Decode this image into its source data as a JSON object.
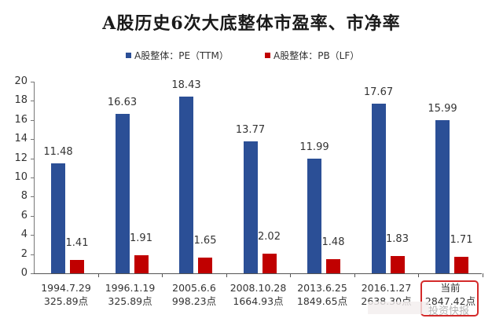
{
  "title": "A股历史6次大底整体市盈率、市净率",
  "legend": [
    {
      "label": "A股整体：PE（TTM）",
      "color": "#2b4f96"
    },
    {
      "label": "A股整体：PB（LF）",
      "color": "#c00000"
    }
  ],
  "watermark": "投资快报",
  "chart_data": {
    "type": "bar",
    "title": "A股历史6次大底整体市盈率、市净率",
    "xlabel": "",
    "ylabel": "",
    "ylim": [
      0,
      20
    ],
    "yticks": [
      0,
      2,
      4,
      6,
      8,
      10,
      12,
      14,
      16,
      18,
      20
    ],
    "grid": false,
    "legend_position": "top",
    "categories": [
      {
        "date": "1994.7.29",
        "index": "325.89点"
      },
      {
        "date": "1996.1.19",
        "index": "325.89点"
      },
      {
        "date": "2005.6.6",
        "index": "998.23点"
      },
      {
        "date": "2008.10.28",
        "index": "1664.93点"
      },
      {
        "date": "2013.6.25",
        "index": "1849.65点"
      },
      {
        "date": "2016.1.27",
        "index": "2638.30点"
      },
      {
        "date": "当前",
        "index": "2847.42点",
        "highlighted": true
      }
    ],
    "series": [
      {
        "name": "A股整体：PE（TTM）",
        "color": "#2b4f96",
        "values": [
          11.48,
          16.63,
          18.43,
          13.77,
          11.99,
          17.67,
          15.99
        ],
        "labels": [
          "11.48",
          "16.63",
          "18.43",
          "13.77",
          "11.99",
          "17.67",
          "15.99"
        ]
      },
      {
        "name": "A股整体：PB（LF）",
        "color": "#c00000",
        "values": [
          1.41,
          1.91,
          1.65,
          2.02,
          1.48,
          1.83,
          1.71
        ],
        "labels": [
          "1.41",
          "1.91",
          "1.65",
          "2.02",
          "1.48",
          "1.83",
          "1.71"
        ]
      }
    ]
  }
}
